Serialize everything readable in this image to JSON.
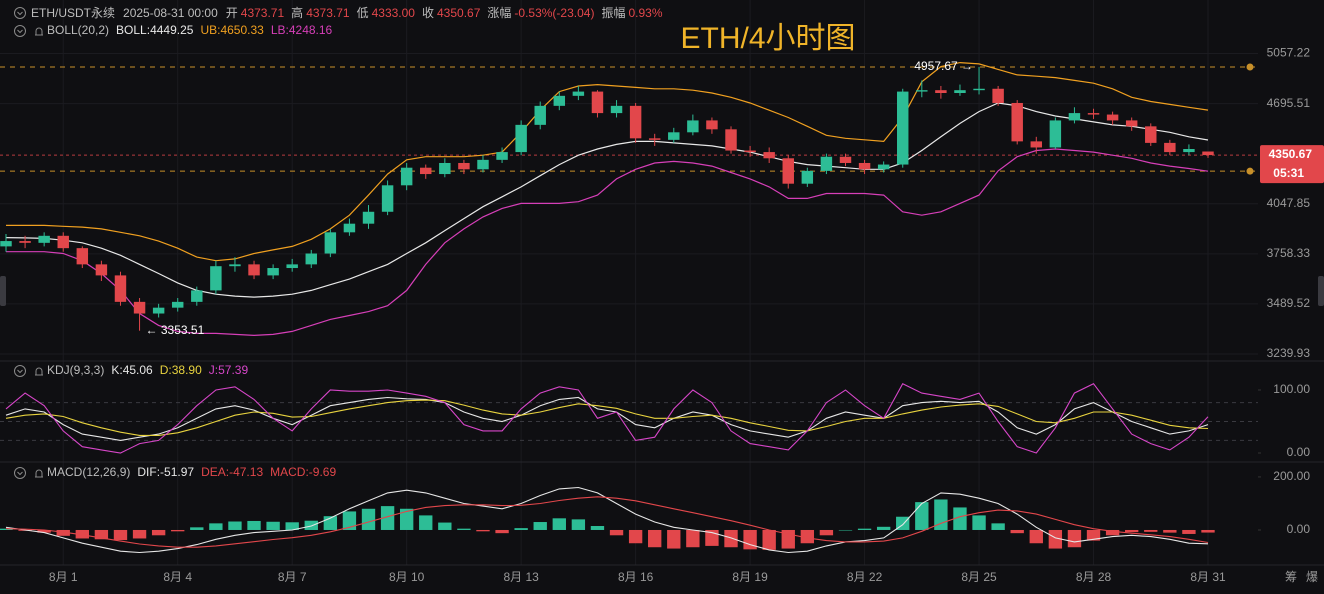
{
  "chart_data": [
    {
      "type": "candlestick",
      "title": "ETH/4小时图",
      "header": {
        "symbol": "ETH/USDT永续",
        "time": "2025-08-31 00:00",
        "fields": [
          {
            "label": "开",
            "value": "4373.71"
          },
          {
            "label": "高",
            "value": "4373.71"
          },
          {
            "label": "低",
            "value": "4333.00"
          },
          {
            "label": "收",
            "value": "4350.67"
          },
          {
            "label": "涨幅",
            "value": "-0.53%(-23.04)"
          },
          {
            "label": "振幅",
            "value": "0.93%"
          }
        ]
      },
      "indicator": "BOLL(20,2)",
      "categories": [
        null,
        null,
        null,
        "8月 1",
        null,
        null,
        null,
        null,
        null,
        "8月 4",
        null,
        null,
        null,
        null,
        null,
        "8月 7",
        null,
        null,
        null,
        null,
        null,
        "8月 10",
        null,
        null,
        null,
        null,
        null,
        "8月 13",
        null,
        null,
        null,
        null,
        null,
        "8月 16",
        null,
        null,
        null,
        null,
        null,
        "8月 19",
        null,
        null,
        null,
        null,
        null,
        "8月 22",
        null,
        null,
        null,
        null,
        null,
        "8月 25",
        null,
        null,
        null,
        null,
        null,
        "8月 28",
        null,
        null,
        null,
        null,
        null,
        "8月 31"
      ],
      "open": [
        3800,
        3830,
        3820,
        3860,
        3790,
        3700,
        3640,
        3500,
        3440,
        3470,
        3500,
        3560,
        3690,
        3700,
        3640,
        3680,
        3700,
        3760,
        3880,
        3930,
        4000,
        4160,
        4270,
        4230,
        4300,
        4260,
        4320,
        4370,
        4550,
        4680,
        4750,
        4780,
        4630,
        4680,
        4460,
        4450,
        4500,
        4580,
        4520,
        4380,
        4370,
        4330,
        4170,
        4250,
        4340,
        4300,
        4260,
        4290,
        4780,
        4790,
        4770,
        4790,
        4800,
        4700,
        4440,
        4400,
        4580,
        4630,
        4620,
        4580,
        4540,
        4430,
        4370,
        4373.71
      ],
      "high": [
        3870,
        3860,
        3880,
        3880,
        3800,
        3720,
        3660,
        3520,
        3490,
        3520,
        3580,
        3720,
        3740,
        3720,
        3700,
        3730,
        3780,
        3900,
        3960,
        4040,
        4190,
        4300,
        4290,
        4330,
        4320,
        4350,
        4400,
        4580,
        4710,
        4780,
        4820,
        4790,
        4720,
        4700,
        4490,
        4530,
        4620,
        4600,
        4540,
        4410,
        4400,
        4350,
        4270,
        4360,
        4360,
        4320,
        4310,
        4800,
        4860,
        4820,
        4830,
        4957.67,
        4820,
        4720,
        4470,
        4600,
        4670,
        4660,
        4640,
        4600,
        4560,
        4450,
        4420,
        4373.71
      ],
      "low": [
        3770,
        3790,
        3800,
        3770,
        3680,
        3610,
        3480,
        3353.51,
        3420,
        3450,
        3480,
        3540,
        3660,
        3620,
        3620,
        3660,
        3680,
        3740,
        3860,
        3900,
        3980,
        4130,
        4200,
        4210,
        4230,
        4240,
        4300,
        4350,
        4520,
        4650,
        4720,
        4600,
        4600,
        4430,
        4410,
        4430,
        4480,
        4490,
        4360,
        4340,
        4300,
        4140,
        4150,
        4230,
        4280,
        4230,
        4240,
        4270,
        4740,
        4730,
        4750,
        4760,
        4680,
        4420,
        4360,
        4390,
        4560,
        4590,
        4550,
        4510,
        4410,
        4350,
        4350,
        4333
      ],
      "close": [
        3830,
        3820,
        3860,
        3790,
        3700,
        3640,
        3500,
        3440,
        3470,
        3500,
        3560,
        3690,
        3700,
        3640,
        3680,
        3700,
        3760,
        3880,
        3930,
        4000,
        4160,
        4270,
        4230,
        4300,
        4260,
        4320,
        4370,
        4550,
        4680,
        4750,
        4780,
        4630,
        4680,
        4460,
        4450,
        4500,
        4580,
        4520,
        4380,
        4370,
        4330,
        4170,
        4250,
        4340,
        4300,
        4260,
        4290,
        4780,
        4790,
        4770,
        4790,
        4800,
        4700,
        4440,
        4400,
        4580,
        4630,
        4620,
        4580,
        4540,
        4430,
        4370,
        4390,
        4350.67
      ],
      "up_color": "#2dbd96",
      "down_color": "#e2474b",
      "overlays": [
        {
          "name": "BOLL:4449.25",
          "color": "#e8e8e8",
          "values": [
            3850,
            3848,
            3845,
            3835,
            3820,
            3790,
            3750,
            3700,
            3650,
            3600,
            3560,
            3540,
            3530,
            3525,
            3530,
            3540,
            3560,
            3590,
            3620,
            3660,
            3700,
            3760,
            3820,
            3890,
            3960,
            4030,
            4090,
            4150,
            4220,
            4290,
            4350,
            4390,
            4420,
            4440,
            4440,
            4430,
            4420,
            4410,
            4390,
            4370,
            4340,
            4310,
            4290,
            4280,
            4270,
            4260,
            4260,
            4300,
            4380,
            4470,
            4560,
            4640,
            4700,
            4680,
            4640,
            4610,
            4590,
            4570,
            4550,
            4540,
            4520,
            4500,
            4470,
            4449.25
          ]
        },
        {
          "name": "UB:4650.33",
          "color": "#f0a020",
          "values": [
            3920,
            3920,
            3920,
            3915,
            3910,
            3900,
            3880,
            3860,
            3830,
            3790,
            3740,
            3720,
            3730,
            3760,
            3780,
            3800,
            3840,
            3900,
            3980,
            4100,
            4230,
            4320,
            4340,
            4340,
            4340,
            4350,
            4370,
            4500,
            4650,
            4780,
            4820,
            4830,
            4820,
            4810,
            4800,
            4800,
            4790,
            4770,
            4740,
            4700,
            4650,
            4600,
            4540,
            4480,
            4460,
            4450,
            4440,
            4600,
            4850,
            4960,
            4990,
            4980,
            4940,
            4900,
            4890,
            4880,
            4860,
            4840,
            4800,
            4740,
            4710,
            4690,
            4670,
            4650.33
          ]
        },
        {
          "name": "LB:4248.16",
          "color": "#d63fb8",
          "values": [
            3770,
            3770,
            3770,
            3760,
            3720,
            3650,
            3560,
            3440,
            3380,
            3350,
            3340,
            3340,
            3335,
            3330,
            3335,
            3350,
            3380,
            3410,
            3430,
            3450,
            3480,
            3560,
            3700,
            3820,
            3900,
            3970,
            4020,
            4050,
            4050,
            4050,
            4060,
            4100,
            4200,
            4260,
            4300,
            4310,
            4300,
            4280,
            4240,
            4200,
            4150,
            4080,
            4080,
            4110,
            4110,
            4110,
            4100,
            4000,
            3980,
            4000,
            4050,
            4100,
            4250,
            4340,
            4380,
            4390,
            4380,
            4370,
            4350,
            4330,
            4300,
            4280,
            4265,
            4248.16
          ]
        }
      ],
      "log_scale": true,
      "ylim": [
        3211,
        5475
      ],
      "yticks": [
        5057.22,
        4695.51,
        4047.85,
        3758.33,
        3489.52,
        3239.93
      ],
      "grid": true,
      "last_price": 4350.67,
      "last_price_color": "#e2474b",
      "countdown": "05:31",
      "ref_lines": [
        4957.67,
        4248.16
      ],
      "ref_line_color": "#c8902a",
      "annotations": [
        {
          "value": 3353.51,
          "label": "← 3353.51"
        },
        {
          "value": 4957.67,
          "label": "4957.67 →"
        }
      ]
    },
    {
      "type": "line",
      "indicator": "KDJ(9,3,3)",
      "series": [
        {
          "name": "K:45.06",
          "color": "#e6e6e6",
          "values": [
            60,
            70,
            65,
            45,
            30,
            25,
            20,
            25,
            30,
            40,
            55,
            70,
            75,
            68,
            55,
            45,
            60,
            75,
            80,
            85,
            88,
            86,
            85,
            80,
            65,
            55,
            50,
            60,
            75,
            85,
            88,
            70,
            65,
            45,
            40,
            55,
            65,
            60,
            45,
            35,
            30,
            25,
            35,
            55,
            65,
            60,
            55,
            75,
            80,
            82,
            80,
            82,
            65,
            40,
            30,
            45,
            70,
            80,
            65,
            50,
            40,
            30,
            35,
            45.06
          ]
        },
        {
          "name": "D:38.90",
          "color": "#e8d33f",
          "values": [
            55,
            60,
            62,
            58,
            48,
            40,
            33,
            28,
            28,
            32,
            40,
            50,
            60,
            65,
            63,
            57,
            58,
            64,
            70,
            75,
            80,
            83,
            84,
            83,
            76,
            68,
            62,
            60,
            65,
            72,
            78,
            75,
            71,
            62,
            55,
            55,
            58,
            60,
            55,
            48,
            42,
            36,
            35,
            42,
            50,
            55,
            55,
            62,
            68,
            73,
            76,
            78,
            74,
            62,
            50,
            48,
            55,
            65,
            65,
            60,
            52,
            44,
            40,
            38.9
          ]
        },
        {
          "name": "J:57.39",
          "color": "#d646c8",
          "values": [
            70,
            95,
            75,
            35,
            10,
            5,
            0,
            15,
            20,
            45,
            75,
            100,
            105,
            85,
            55,
            35,
            70,
            100,
            98,
            98,
            100,
            95,
            90,
            80,
            45,
            35,
            35,
            70,
            95,
            105,
            100,
            55,
            65,
            20,
            25,
            70,
            100,
            80,
            35,
            15,
            10,
            5,
            35,
            80,
            100,
            75,
            55,
            110,
            95,
            90,
            85,
            95,
            50,
            10,
            0,
            40,
            95,
            110,
            70,
            30,
            15,
            5,
            25,
            57.39
          ]
        }
      ],
      "ylim": [
        -11.1,
        144.4
      ],
      "yticks": [
        {
          "value": 100,
          "label": "100.00"
        },
        {
          "value": 0,
          "label": "0.00"
        }
      ],
      "grid": false,
      "ref_levels": [
        20,
        50,
        80
      ]
    },
    {
      "type": "macd",
      "indicator": "MACD(12,26,9)",
      "up_color": "#2dbd96",
      "down_color": "#e2474b",
      "series": [
        {
          "name": "DIF:-51.97",
          "color": "#e6e6e6",
          "style": "line",
          "values": [
            10,
            0,
            -10,
            -30,
            -50,
            -65,
            -80,
            -85,
            -80,
            -70,
            -55,
            -35,
            -20,
            -10,
            -5,
            0,
            15,
            45,
            80,
            110,
            140,
            150,
            140,
            120,
            100,
            90,
            80,
            100,
            130,
            155,
            160,
            140,
            100,
            60,
            30,
            10,
            0,
            -10,
            -30,
            -55,
            -75,
            -85,
            -80,
            -60,
            -45,
            -40,
            -30,
            20,
            100,
            140,
            135,
            120,
            100,
            60,
            10,
            -30,
            -45,
            -35,
            -25,
            -20,
            -25,
            -35,
            -50,
            -51.97
          ]
        },
        {
          "name": "DEA:-47.13",
          "color": "#e2474b",
          "style": "line",
          "values": [
            5,
            3,
            0,
            -8,
            -18,
            -30,
            -42,
            -53,
            -60,
            -65,
            -65,
            -60,
            -52,
            -44,
            -36,
            -29,
            -20,
            -7,
            10,
            30,
            50,
            70,
            85,
            92,
            95,
            95,
            92,
            93,
            100,
            111,
            120,
            125,
            120,
            110,
            95,
            80,
            65,
            50,
            35,
            18,
            0,
            -15,
            -30,
            -40,
            -45,
            -45,
            -42,
            -30,
            -5,
            25,
            50,
            65,
            75,
            72,
            60,
            40,
            20,
            5,
            -5,
            -12,
            -18,
            -25,
            -35,
            -47.13
          ]
        },
        {
          "name": "MACD:-9.69",
          "color": "#e2474b",
          "style": "bar",
          "values": [
            5,
            -3,
            -10,
            -22,
            -32,
            -35,
            -38,
            -32,
            -20,
            -5,
            10,
            25,
            32,
            34,
            31,
            29,
            35,
            52,
            70,
            80,
            90,
            80,
            55,
            28,
            5,
            -5,
            -12,
            7,
            30,
            44,
            40,
            15,
            -20,
            -50,
            -65,
            -70,
            -65,
            -60,
            -65,
            -73,
            -75,
            -70,
            -50,
            -20,
            0,
            5,
            12,
            50,
            105,
            115,
            85,
            55,
            25,
            -12,
            -50,
            -70,
            -65,
            -40,
            -20,
            -8,
            -7,
            -10,
            -15,
            -9.69
          ]
        }
      ],
      "ylim": [
        -132,
        245
      ],
      "yticks": [
        {
          "value": 200,
          "label": "200.00"
        },
        {
          "value": 0,
          "label": "0.00"
        }
      ],
      "grid": false
    }
  ],
  "tools": [
    "筹",
    "爆"
  ]
}
